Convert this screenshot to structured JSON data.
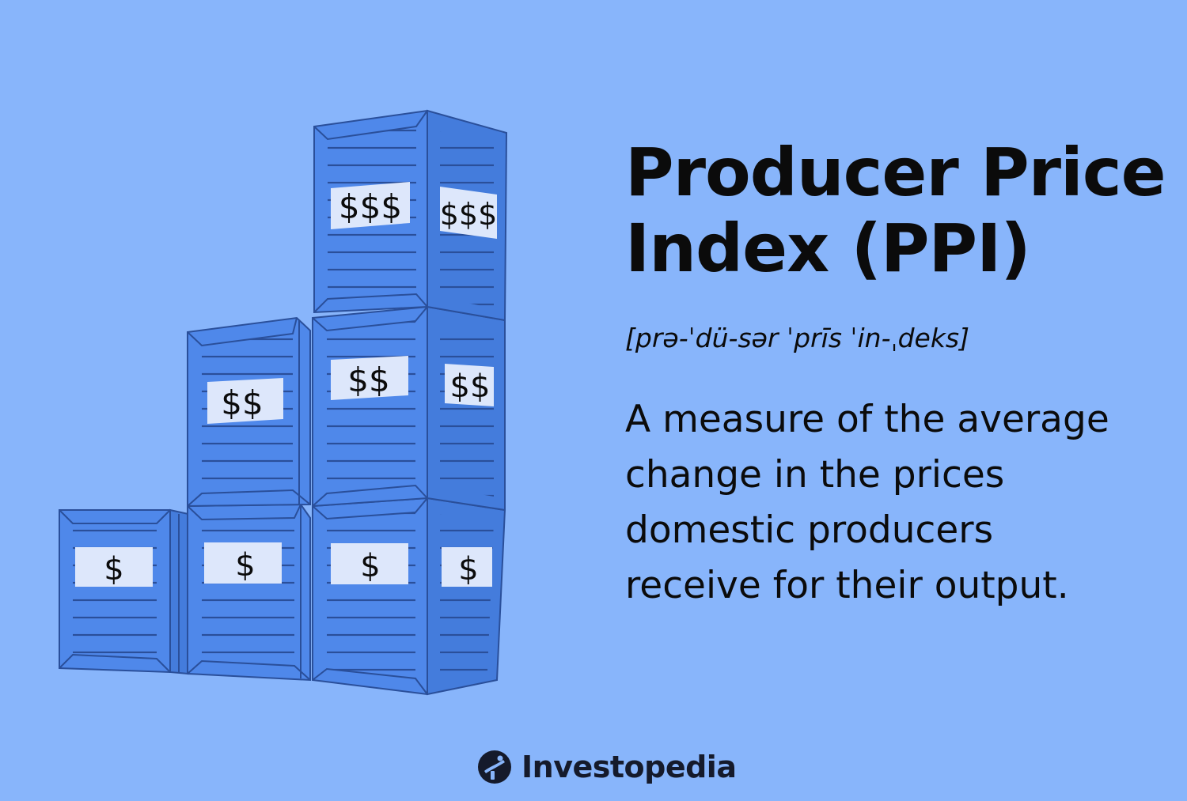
{
  "title_line1": "Producer Price",
  "title_line2": "Index (PPI)",
  "pronunciation": "[prə-ˈdü-sər ˈprīs ˈin-ˌdeks]",
  "definition": [
    "A measure of the average",
    "change in the prices",
    "domestic producers",
    "receive for their output."
  ],
  "brand": {
    "name": "Investopedia",
    "logo_icon": "investopedia-logo-icon"
  },
  "crates": {
    "one": "$",
    "two": "$$",
    "three": "$$$"
  },
  "colors": {
    "background": "#88b5fb",
    "crate_front": "#4f88ea",
    "crate_side": "#447cdc",
    "crate_line": "#2a4f9a",
    "label_bg": "#dde7fb",
    "text": "#0b0b0b",
    "brand_dark": "#151a2b"
  }
}
